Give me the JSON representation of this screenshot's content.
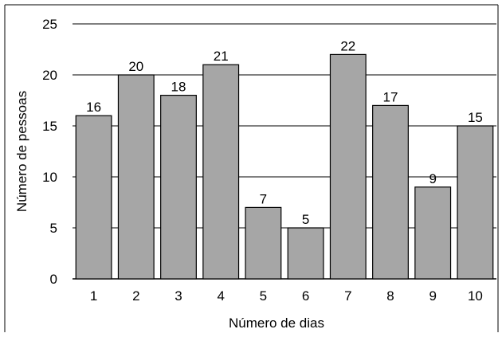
{
  "chart_data": {
    "type": "bar",
    "title": "",
    "xlabel": "Número de dias",
    "ylabel": "Número de pessoas",
    "categories": [
      "1",
      "2",
      "3",
      "4",
      "5",
      "6",
      "7",
      "8",
      "9",
      "10"
    ],
    "values": [
      16,
      20,
      18,
      21,
      7,
      5,
      22,
      17,
      9,
      15
    ],
    "data_labels": [
      "16",
      "20",
      "18",
      "21",
      "7",
      "5",
      "22",
      "17",
      "9",
      "15"
    ],
    "ylim": [
      0,
      25
    ],
    "yticks": [
      0,
      5,
      10,
      15,
      20,
      25
    ],
    "ytick_labels": [
      "0",
      "5",
      "10",
      "15",
      "20",
      "25"
    ],
    "grid": "horizontal",
    "legend": "none",
    "colors": {
      "bar_fill": "#a6a6a6",
      "bar_stroke": "#000000",
      "grid": "#000000",
      "frame": "#000000"
    }
  }
}
